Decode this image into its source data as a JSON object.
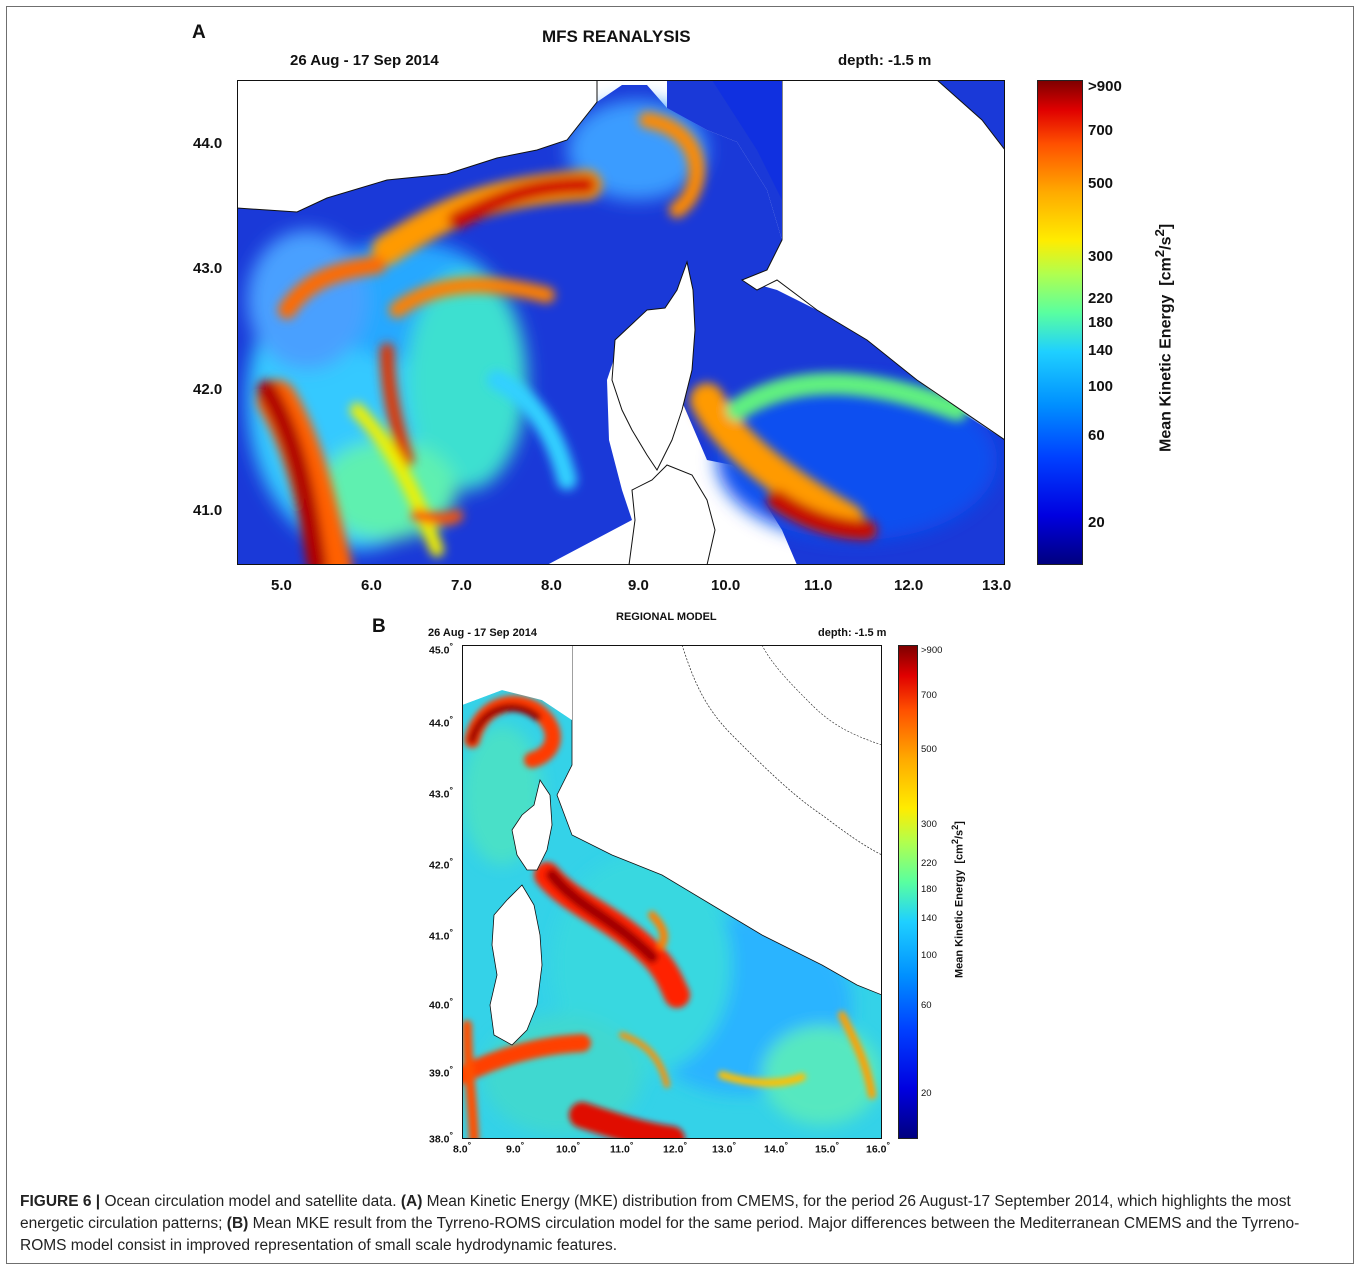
{
  "panel_a": {
    "letter": "A",
    "title": "MFS REANALYSIS",
    "period": "26 Aug - 17 Sep 2014",
    "depth": "depth: -1.5 m",
    "lat_ticks": [
      "44.0",
      "43.0",
      "42.0",
      "41.0"
    ],
    "lon_ticks": [
      "5.0",
      "6.0",
      "7.0",
      "8.0",
      "9.0",
      "10.0",
      "11.0",
      "12.0",
      "13.0"
    ],
    "colorbar_ticks": [
      ">900",
      "700",
      "500",
      "300",
      "220",
      "180",
      "140",
      "100",
      "60",
      "20"
    ],
    "colorbar_label": "Mean Kinetic Energy",
    "colorbar_unit_base": "[cm",
    "colorbar_unit_sup1": "2",
    "colorbar_unit_mid": "/s",
    "colorbar_unit_sup2": "2",
    "colorbar_unit_end": "]"
  },
  "panel_b": {
    "letter": "B",
    "title": "REGIONAL MODEL",
    "period": "26 Aug - 17 Sep 2014",
    "depth": "depth: -1.5 m",
    "lat_ticks": [
      "45.0",
      "44.0",
      "43.0",
      "42.0",
      "41.0",
      "40.0",
      "39.0",
      "38.0"
    ],
    "lon_ticks": [
      "8.0",
      "9.0",
      "10.0",
      "11.0",
      "12.0",
      "13.0",
      "14.0",
      "15.0",
      "16.0"
    ],
    "degree": "°",
    "colorbar_ticks": [
      ">900",
      "700",
      "500",
      "300",
      "220",
      "180",
      "140",
      "100",
      "60",
      "20"
    ],
    "colorbar_label": "Mean Kinetic Energy",
    "colorbar_unit_base": "[cm",
    "colorbar_unit_sup1": "2",
    "colorbar_unit_mid": "/s",
    "colorbar_unit_sup2": "2",
    "colorbar_unit_end": "]"
  },
  "caption": {
    "label": "FIGURE 6 |",
    "intro": " Ocean circulation model and satellite data. ",
    "a_tag": "(A)",
    "a_text": " Mean Kinetic Energy (MKE) distribution from CMEMS, for the period 26 August-17 September 2014, which highlights the most energetic circulation patterns; ",
    "b_tag": "(B)",
    "b_text": " Mean MKE result from the Tyrreno-ROMS circulation model for the same period. Major differences between the Mediterranean CMEMS and the Tyrreno-ROMS model consist in improved representation of small scale hydrodynamic features."
  }
}
